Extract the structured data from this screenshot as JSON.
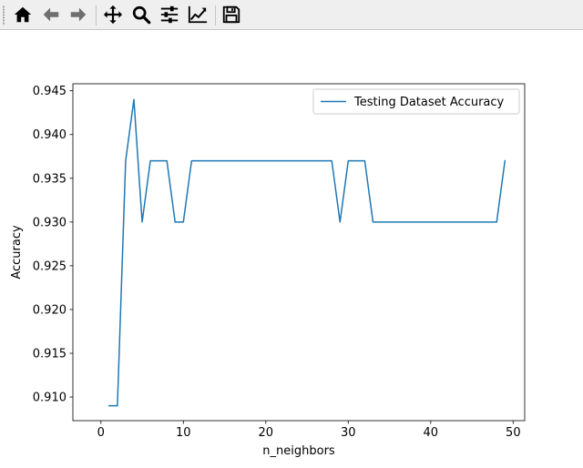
{
  "toolbar": {
    "buttons": [
      {
        "icon": "home-icon",
        "tooltip": "Home"
      },
      {
        "icon": "back-arrow-icon",
        "tooltip": "Back"
      },
      {
        "icon": "forward-arrow-icon",
        "tooltip": "Forward"
      },
      {
        "icon": "pan-move-icon",
        "tooltip": "Pan"
      },
      {
        "icon": "zoom-magnifier-icon",
        "tooltip": "Zoom"
      },
      {
        "icon": "subplots-sliders-icon",
        "tooltip": "Subplots"
      },
      {
        "icon": "edit-axis-icon",
        "tooltip": "Customize"
      },
      {
        "icon": "save-floppy-icon",
        "tooltip": "Save"
      }
    ]
  },
  "colors": {
    "toolbar_bg": "#efefef",
    "line": "#1f77b4",
    "icon": "#000000"
  },
  "chart_data": {
    "type": "line",
    "xlabel": "n_neighbors",
    "ylabel": "Accuracy",
    "xlim": [
      -3.4,
      51.4
    ],
    "ylim": [
      0.9073,
      0.9458
    ],
    "xticks": [
      0,
      10,
      20,
      30,
      40,
      50
    ],
    "yticks": [
      0.91,
      0.915,
      0.92,
      0.925,
      0.93,
      0.935,
      0.94,
      0.945
    ],
    "ytick_labels": [
      "0.910",
      "0.915",
      "0.920",
      "0.925",
      "0.930",
      "0.935",
      "0.940",
      "0.945"
    ],
    "xtick_labels": [
      "0",
      "10",
      "20",
      "30",
      "40",
      "50"
    ],
    "legend": {
      "position": "top-right"
    },
    "grid": false,
    "series": [
      {
        "name": "Testing Dataset Accuracy",
        "color": "#1f77b4",
        "x": [
          1,
          2,
          3,
          4,
          5,
          6,
          7,
          8,
          9,
          10,
          11,
          12,
          13,
          14,
          15,
          16,
          17,
          18,
          19,
          20,
          21,
          22,
          23,
          24,
          25,
          26,
          27,
          28,
          29,
          30,
          31,
          32,
          33,
          34,
          35,
          36,
          37,
          38,
          39,
          40,
          41,
          42,
          43,
          44,
          45,
          46,
          47,
          48,
          49
        ],
        "y": [
          0.909,
          0.909,
          0.937,
          0.944,
          0.93,
          0.937,
          0.937,
          0.937,
          0.93,
          0.93,
          0.937,
          0.937,
          0.937,
          0.937,
          0.937,
          0.937,
          0.937,
          0.937,
          0.937,
          0.937,
          0.937,
          0.937,
          0.937,
          0.937,
          0.937,
          0.937,
          0.937,
          0.937,
          0.93,
          0.937,
          0.937,
          0.937,
          0.93,
          0.93,
          0.93,
          0.93,
          0.93,
          0.93,
          0.93,
          0.93,
          0.93,
          0.93,
          0.93,
          0.93,
          0.93,
          0.93,
          0.93,
          0.93,
          0.937
        ]
      }
    ]
  }
}
